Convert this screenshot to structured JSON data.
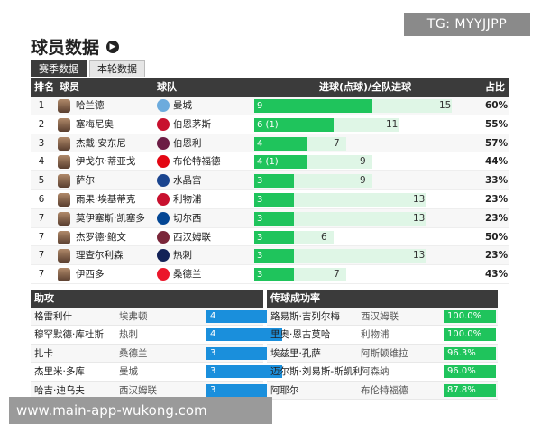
{
  "watermark_top": "TG: MYYJJPP",
  "watermark_bottom": "www.main-app-wukong.com",
  "title": "球员数据",
  "tabs": [
    "赛季数据",
    "本轮数据"
  ],
  "main_table": {
    "headers": {
      "rank": "排名",
      "player": "球员",
      "team": "球队",
      "goals": "进球(点球)/全队进球",
      "pct": "占比"
    },
    "scale_max": 17,
    "rows": [
      {
        "rank": "1",
        "player": "哈兰德",
        "team": "曼城",
        "goals": 9,
        "goals_label": "9",
        "team_total": 15,
        "total_label": "15",
        "pct": "60%",
        "badge_color": "#6cabdd"
      },
      {
        "rank": "2",
        "player": "塞梅尼奥",
        "team": "伯恩茅斯",
        "goals": 6,
        "goals_label": "6 (1)",
        "team_total": 11,
        "total_label": "11",
        "pct": "55%",
        "badge_color": "#c8102e"
      },
      {
        "rank": "3",
        "player": "杰戴·安东尼",
        "team": "伯恩利",
        "goals": 4,
        "goals_label": "4",
        "team_total": 7,
        "total_label": "7",
        "pct": "57%",
        "badge_color": "#6c1d45"
      },
      {
        "rank": "4",
        "player": "伊戈尔·蒂亚戈",
        "team": "布伦特福德",
        "goals": 4,
        "goals_label": "4 (1)",
        "team_total": 9,
        "total_label": "9",
        "pct": "44%",
        "badge_color": "#e30613"
      },
      {
        "rank": "5",
        "player": "萨尔",
        "team": "水晶宫",
        "goals": 3,
        "goals_label": "3",
        "team_total": 9,
        "total_label": "9",
        "pct": "33%",
        "badge_color": "#1b458f"
      },
      {
        "rank": "6",
        "player": "雨果·埃基蒂克",
        "team": "利物浦",
        "goals": 3,
        "goals_label": "3",
        "team_total": 13,
        "total_label": "13",
        "pct": "23%",
        "badge_color": "#c8102e"
      },
      {
        "rank": "7",
        "player": "莫伊塞斯·凯塞多",
        "team": "切尔西",
        "goals": 3,
        "goals_label": "3",
        "team_total": 13,
        "total_label": "13",
        "pct": "23%",
        "badge_color": "#034694"
      },
      {
        "rank": "7",
        "player": "杰罗德·鲍文",
        "team": "西汉姆联",
        "goals": 3,
        "goals_label": "3",
        "team_total": 6,
        "total_label": "6",
        "pct": "50%",
        "badge_color": "#7a263a"
      },
      {
        "rank": "7",
        "player": "理查尔利森",
        "team": "热刺",
        "goals": 3,
        "goals_label": "3",
        "team_total": 13,
        "total_label": "13",
        "pct": "23%",
        "badge_color": "#132257"
      },
      {
        "rank": "7",
        "player": "伊西多",
        "team": "桑德兰",
        "goals": 3,
        "goals_label": "3",
        "team_total": 7,
        "total_label": "7",
        "pct": "43%",
        "badge_color": "#eb172b"
      }
    ]
  },
  "assists": {
    "title": "助攻",
    "rows": [
      {
        "player": "格雷利什",
        "team": "埃弗顿",
        "value": "4"
      },
      {
        "player": "穆罕默德·库杜斯",
        "team": "热刺",
        "value": "4"
      },
      {
        "player": "扎卡",
        "team": "桑德兰",
        "value": "3"
      },
      {
        "player": "杰里米·多库",
        "team": "曼城",
        "value": "3"
      },
      {
        "player": "哈吉·迪乌夫",
        "team": "西汉姆联",
        "value": "3"
      }
    ]
  },
  "passing": {
    "title": "传球成功率",
    "rows": [
      {
        "player": "路易斯·吉列尔梅",
        "team": "西汉姆联",
        "value": "100.0%"
      },
      {
        "player": "里奥·恩古莫哈",
        "team": "利物浦",
        "value": "100.0%"
      },
      {
        "player": "埃兹里·孔萨",
        "team": "阿斯顿维拉",
        "value": "96.3%"
      },
      {
        "player": "迈尔斯·刘易斯-斯凯利",
        "team": "阿森纳",
        "value": "96.0%"
      },
      {
        "player": "阿耶尔",
        "team": "布伦特福德",
        "value": "87.8%"
      }
    ]
  }
}
